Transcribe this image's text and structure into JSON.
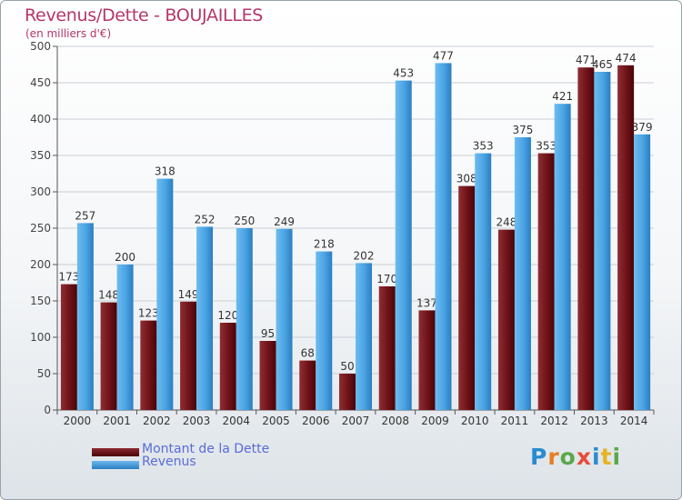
{
  "chart_data": {
    "type": "bar",
    "title": "Revenus/Dette - BOUJAILLES",
    "subtitle": "(en milliers d'€)",
    "categories": [
      "2000",
      "2001",
      "2002",
      "2003",
      "2004",
      "2005",
      "2006",
      "2007",
      "2008",
      "2009",
      "2010",
      "2011",
      "2012",
      "2013",
      "2014"
    ],
    "series": [
      {
        "name": "Montant de la Dette",
        "values": [
          173,
          148,
          123,
          149,
          120,
          95,
          68,
          50,
          170,
          137,
          308,
          248,
          353,
          471,
          474
        ],
        "color": "#6b0f16"
      },
      {
        "name": "Revenus",
        "values": [
          257,
          200,
          318,
          252,
          250,
          249,
          218,
          202,
          453,
          477,
          353,
          375,
          421,
          465,
          379
        ],
        "color": "#3e9ae0"
      }
    ],
    "ylim": [
      0,
      500
    ],
    "yticks": [
      0,
      50,
      100,
      150,
      200,
      250,
      300,
      350,
      400,
      450,
      500
    ],
    "grid": true,
    "legend": "bottom-left"
  },
  "brand": {
    "text": "Proxiti",
    "letters": [
      {
        "ch": "P",
        "color": "#2a8bd0"
      },
      {
        "ch": "r",
        "color": "#e67e22"
      },
      {
        "ch": "o",
        "color": "#5aa84a"
      },
      {
        "ch": "x",
        "color": "#e74c3c"
      },
      {
        "ch": "i",
        "color": "#2a8bd0"
      },
      {
        "ch": "t",
        "color": "#e6b422"
      },
      {
        "ch": "i",
        "color": "#5aa84a"
      }
    ]
  }
}
